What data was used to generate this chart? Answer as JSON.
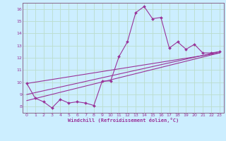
{
  "xlabel": "Windchill (Refroidissement éolien,°C)",
  "background_color": "#cceeff",
  "grid_color": "#aaddcc",
  "line_color": "#993399",
  "spine_color": "#886688",
  "xlim": [
    -0.5,
    23.5
  ],
  "ylim": [
    7.5,
    16.5
  ],
  "xticks": [
    0,
    1,
    2,
    3,
    4,
    5,
    6,
    7,
    8,
    9,
    10,
    11,
    12,
    13,
    14,
    15,
    16,
    17,
    18,
    19,
    20,
    21,
    22,
    23
  ],
  "yticks": [
    8,
    9,
    10,
    11,
    12,
    13,
    14,
    15,
    16
  ],
  "hours": [
    0,
    1,
    2,
    3,
    4,
    5,
    6,
    7,
    8,
    9,
    10,
    11,
    12,
    13,
    14,
    15,
    16,
    17,
    18,
    19,
    20,
    21,
    22,
    23
  ],
  "windchill": [
    9.9,
    8.7,
    8.4,
    7.9,
    8.6,
    8.3,
    8.4,
    8.3,
    8.1,
    10.1,
    10.1,
    12.1,
    13.3,
    15.7,
    16.2,
    15.2,
    15.3,
    12.8,
    13.3,
    12.7,
    13.1,
    12.4,
    12.4,
    12.5
  ],
  "trend1_x": [
    0,
    23
  ],
  "trend1_y": [
    8.5,
    12.4
  ],
  "trend2_x": [
    0,
    23
  ],
  "trend2_y": [
    9.0,
    12.5
  ],
  "trend3_x": [
    0,
    23
  ],
  "trend3_y": [
    9.9,
    12.4
  ]
}
